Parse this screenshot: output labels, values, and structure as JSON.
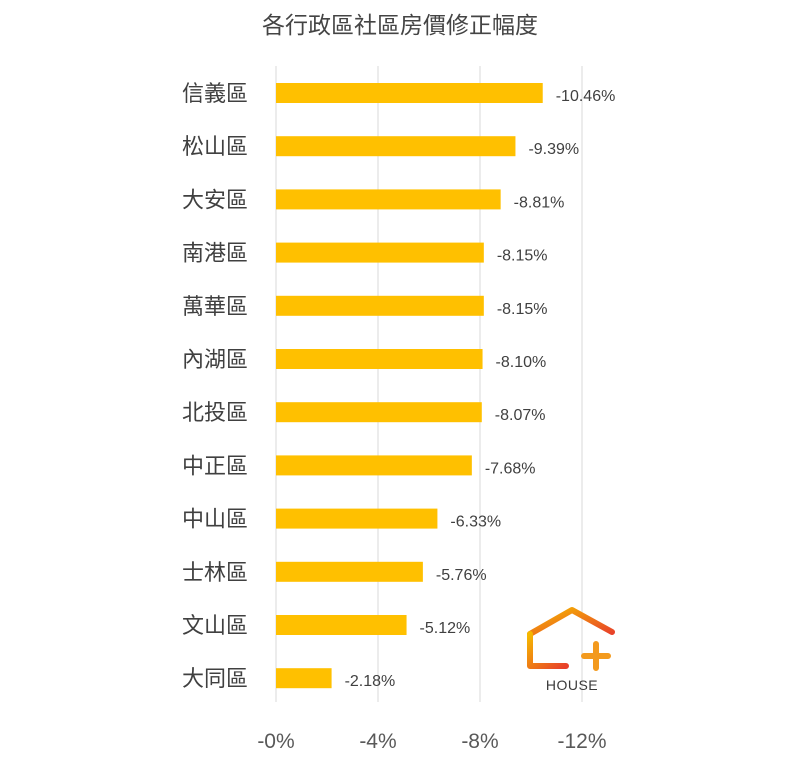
{
  "chart_data": {
    "type": "bar",
    "orientation": "horizontal",
    "title": "各行政區社區房價修正幅度",
    "categories": [
      "信義區",
      "松山區",
      "大安區",
      "南港區",
      "萬華區",
      "內湖區",
      "北投區",
      "中正區",
      "中山區",
      "士林區",
      "文山區",
      "大同區"
    ],
    "values": [
      -10.46,
      -9.39,
      -8.81,
      -8.15,
      -8.15,
      -8.1,
      -8.07,
      -7.68,
      -6.33,
      -5.76,
      -5.12,
      -2.18
    ],
    "data_labels": [
      "-10.46%",
      "-9.39%",
      "-8.81%",
      "-8.15%",
      "-8.15%",
      "-8.10%",
      "-8.07%",
      "-7.68%",
      "-6.33%",
      "-5.76%",
      "-5.12%",
      "-2.18%"
    ],
    "x_ticks": [
      0,
      -4,
      -8,
      -12
    ],
    "x_tick_labels": [
      "-0%",
      "-4%",
      "-8%",
      "-12%"
    ],
    "xlim": [
      0,
      -12
    ],
    "axis_reversed": true,
    "grid": "vertical",
    "legend": "none",
    "bar_color": "#FFC000",
    "grid_color": "#D9D9D9"
  },
  "logo": {
    "text": "HOUSE",
    "roof_color_start": "#F5B800",
    "roof_color_end": "#E8402A",
    "plus_color": "#F39A1E"
  }
}
